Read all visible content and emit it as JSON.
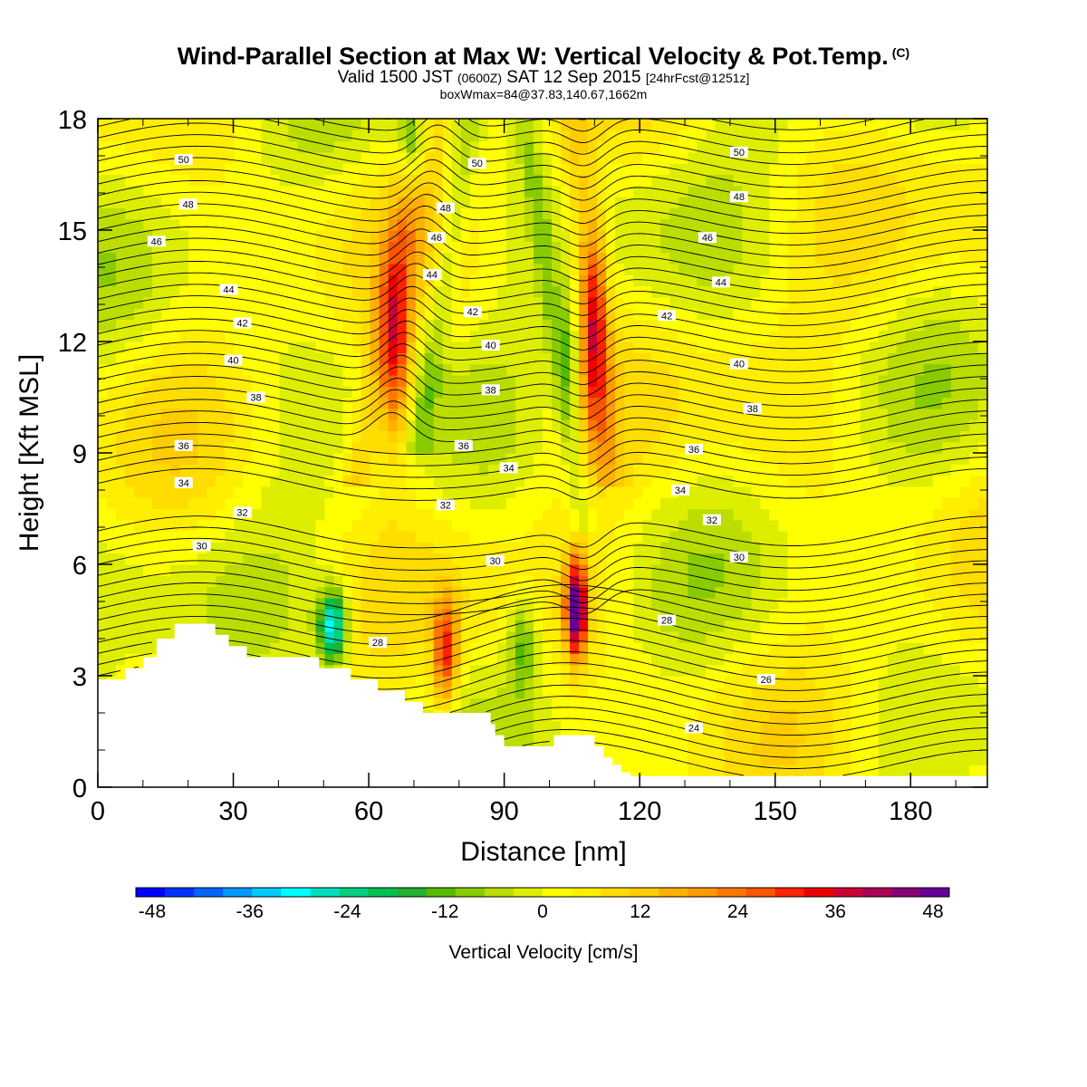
{
  "title": {
    "main": "Wind-Parallel Section at Max W: Vertical Velocity & Pot.Temp.",
    "copyright": "(C)",
    "valid_prefix": "Valid 1500 JST",
    "valid_utc": "(0600Z)",
    "valid_date": "SAT 12 Sep 2015",
    "forecast": "[24hrFcst@1251z]",
    "box": "boxWmax=84@37.83,140.67,1662m"
  },
  "chart_data": {
    "type": "heatmap",
    "xlabel": "Distance [nm]",
    "ylabel": "Height [Kft MSL]",
    "xlim": [
      0,
      197
    ],
    "ylim": [
      0,
      18
    ],
    "xticks": [
      0,
      30,
      60,
      90,
      120,
      150,
      180
    ],
    "yticks": [
      0,
      3,
      6,
      9,
      12,
      15,
      18
    ],
    "colorbar": {
      "label": "Vertical Velocity [cm/s]",
      "ticks": [
        -48,
        -36,
        -24,
        -12,
        0,
        12,
        24,
        36,
        48
      ],
      "range": [
        -50,
        50
      ],
      "colors": [
        "#0000ff",
        "#0033ff",
        "#0066ff",
        "#0099ff",
        "#00ccff",
        "#00ffff",
        "#00e0c0",
        "#00d080",
        "#00c050",
        "#22b030",
        "#55bb00",
        "#88cc00",
        "#bbdd00",
        "#ddee00",
        "#ffff00",
        "#ffee00",
        "#ffdd00",
        "#ffcc00",
        "#ffb000",
        "#ff9900",
        "#ff7700",
        "#ff5500",
        "#ff2200",
        "#ee0000",
        "#cc0033",
        "#aa0055",
        "#880077",
        "#660099"
      ]
    },
    "terrain": [
      [
        0,
        2.9
      ],
      [
        4,
        2.9
      ],
      [
        6,
        3.2
      ],
      [
        9,
        3.2
      ],
      [
        10,
        3.5
      ],
      [
        12,
        3.5
      ],
      [
        13,
        4.0
      ],
      [
        16,
        4.0
      ],
      [
        17,
        4.4
      ],
      [
        25,
        4.4
      ],
      [
        26,
        4.1
      ],
      [
        28,
        4.1
      ],
      [
        29,
        3.8
      ],
      [
        31,
        3.8
      ],
      [
        33,
        3.5
      ],
      [
        48,
        3.5
      ],
      [
        49,
        3.2
      ],
      [
        55,
        3.2
      ],
      [
        56,
        2.9
      ],
      [
        61,
        2.9
      ],
      [
        62,
        2.6
      ],
      [
        67,
        2.6
      ],
      [
        68,
        2.3
      ],
      [
        71,
        2.3
      ],
      [
        72,
        2.0
      ],
      [
        86,
        2.0
      ],
      [
        87,
        1.7
      ],
      [
        88,
        1.4
      ],
      [
        90,
        1.1
      ],
      [
        100,
        1.1
      ],
      [
        101,
        1.4
      ],
      [
        109,
        1.4
      ],
      [
        110,
        1.1
      ],
      [
        112,
        0.8
      ],
      [
        114,
        0.6
      ],
      [
        116,
        0.4
      ],
      [
        118,
        0.3
      ],
      [
        197,
        0.3
      ]
    ],
    "theta_contours": [
      {
        "label": "24",
        "level": 24,
        "label_at": [
          132,
          1.6
        ]
      },
      {
        "label": "26",
        "level": 26,
        "label_at": [
          148,
          2.9
        ]
      },
      {
        "label": "28",
        "level": 28,
        "label_at": [
          62,
          3.9
        ]
      },
      {
        "label": "28",
        "level": 28,
        "label_at": [
          126,
          4.5
        ]
      },
      {
        "label": "30",
        "level": 30,
        "label_at": [
          23,
          6.5
        ]
      },
      {
        "label": "30",
        "level": 30,
        "label_at": [
          88,
          6.1
        ]
      },
      {
        "label": "30",
        "level": 30,
        "label_at": [
          142,
          6.2
        ]
      },
      {
        "label": "32",
        "level": 32,
        "label_at": [
          32,
          7.4
        ]
      },
      {
        "label": "32",
        "level": 32,
        "label_at": [
          77,
          7.6
        ]
      },
      {
        "label": "32",
        "level": 32,
        "label_at": [
          136,
          7.2
        ]
      },
      {
        "label": "34",
        "level": 34,
        "label_at": [
          19,
          8.2
        ]
      },
      {
        "label": "34",
        "level": 34,
        "label_at": [
          91,
          8.6
        ]
      },
      {
        "label": "34",
        "level": 34,
        "label_at": [
          129,
          8.0
        ]
      },
      {
        "label": "36",
        "level": 36,
        "label_at": [
          19,
          9.2
        ]
      },
      {
        "label": "36",
        "level": 36,
        "label_at": [
          81,
          9.2
        ]
      },
      {
        "label": "36",
        "level": 36,
        "label_at": [
          132,
          9.1
        ]
      },
      {
        "label": "38",
        "level": 38,
        "label_at": [
          35,
          10.5
        ]
      },
      {
        "label": "38",
        "level": 38,
        "label_at": [
          87,
          10.7
        ]
      },
      {
        "label": "38",
        "level": 38,
        "label_at": [
          145,
          10.2
        ]
      },
      {
        "label": "40",
        "level": 40,
        "label_at": [
          30,
          11.5
        ]
      },
      {
        "label": "40",
        "level": 40,
        "label_at": [
          87,
          11.9
        ]
      },
      {
        "label": "40",
        "level": 40,
        "label_at": [
          142,
          11.4
        ]
      },
      {
        "label": "42",
        "level": 42,
        "label_at": [
          32,
          12.5
        ]
      },
      {
        "label": "42",
        "level": 42,
        "label_at": [
          83,
          12.8
        ]
      },
      {
        "label": "42",
        "level": 42,
        "label_at": [
          126,
          12.7
        ]
      },
      {
        "label": "44",
        "level": 44,
        "label_at": [
          29,
          13.4
        ]
      },
      {
        "label": "44",
        "level": 44,
        "label_at": [
          74,
          13.8
        ]
      },
      {
        "label": "44",
        "level": 44,
        "label_at": [
          138,
          13.6
        ]
      },
      {
        "label": "46",
        "level": 46,
        "label_at": [
          13,
          14.7
        ]
      },
      {
        "label": "46",
        "level": 46,
        "label_at": [
          75,
          14.8
        ]
      },
      {
        "label": "46",
        "level": 46,
        "label_at": [
          135,
          14.8
        ]
      },
      {
        "label": "48",
        "level": 48,
        "label_at": [
          20,
          15.7
        ]
      },
      {
        "label": "48",
        "level": 48,
        "label_at": [
          77,
          15.6
        ]
      },
      {
        "label": "48",
        "level": 48,
        "label_at": [
          142,
          15.9
        ]
      },
      {
        "label": "50",
        "level": 50,
        "label_at": [
          19,
          16.9
        ]
      },
      {
        "label": "50",
        "level": 50,
        "label_at": [
          84,
          16.8
        ]
      },
      {
        "label": "50",
        "level": 50,
        "label_at": [
          142,
          17.1
        ]
      }
    ],
    "w_features": [
      {
        "x": 106,
        "z": 4.8,
        "w": 48,
        "wx": 2.4,
        "wz": 1.3
      },
      {
        "x": 77,
        "z": 3.6,
        "w": 28,
        "wx": 2.8,
        "wz": 1.5
      },
      {
        "x": 52,
        "z": 4.3,
        "w": -34,
        "wx": 3.2,
        "wz": 1.0
      },
      {
        "x": 66,
        "z": 11.5,
        "w": 26,
        "wx": 3.5,
        "wz": 2.5
      },
      {
        "x": 110,
        "z": 12.5,
        "w": 24,
        "wx": 3.0,
        "wz": 3.0
      },
      {
        "x": 70,
        "z": 17.4,
        "w": -20,
        "wx": 3.0,
        "wz": 1.2
      },
      {
        "x": 94,
        "z": 3.8,
        "w": -14,
        "wx": 3.5,
        "wz": 1.4
      },
      {
        "x": 104,
        "z": 11.8,
        "w": -10,
        "wx": 2.5,
        "wz": 1.8
      }
    ]
  }
}
